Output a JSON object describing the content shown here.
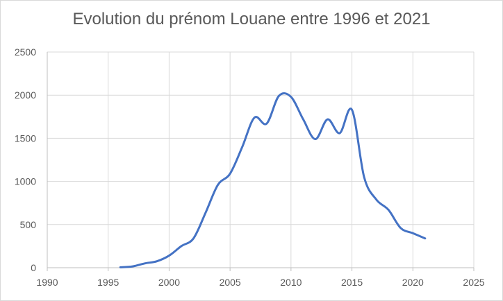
{
  "chart_data": {
    "type": "line",
    "title": "Evolution du prénom Louane entre 1996 et 2021",
    "xlabel": "",
    "ylabel": "",
    "xlim": [
      1990,
      2025
    ],
    "ylim": [
      0,
      2500
    ],
    "xticks": [
      "1990",
      "1995",
      "2000",
      "2005",
      "2010",
      "2015",
      "2020",
      "2025"
    ],
    "yticks": [
      "0",
      "500",
      "1000",
      "1500",
      "2000",
      "2500"
    ],
    "grid": true,
    "legend": false,
    "series": [
      {
        "color": "#4472c4",
        "x": [
          1996,
          1997,
          1998,
          1999,
          2000,
          2001,
          2002,
          2003,
          2004,
          2005,
          2006,
          2007,
          2008,
          2009,
          2010,
          2011,
          2012,
          2013,
          2014,
          2015,
          2016,
          2017,
          2018,
          2019,
          2020,
          2021
        ],
        "y": [
          5,
          15,
          50,
          75,
          140,
          250,
          340,
          640,
          960,
          1090,
          1400,
          1740,
          1670,
          1990,
          1980,
          1720,
          1490,
          1720,
          1560,
          1830,
          1050,
          790,
          670,
          460,
          400,
          340
        ]
      }
    ]
  }
}
